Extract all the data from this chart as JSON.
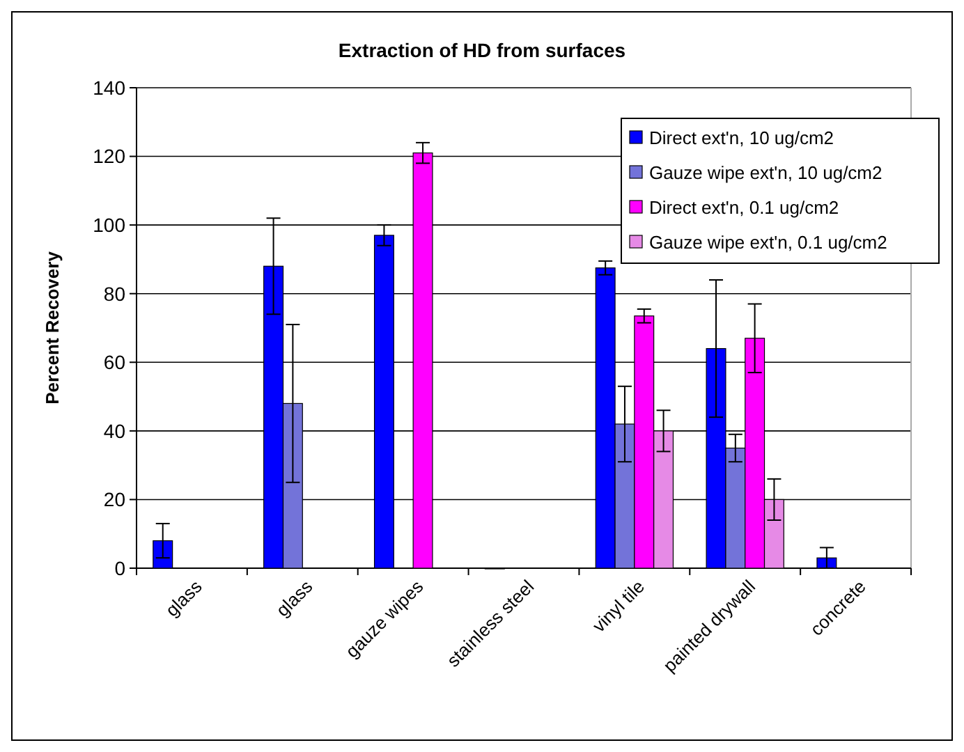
{
  "chart_data": {
    "type": "bar",
    "title": "Extraction of HD from surfaces",
    "ylabel": "Percent Recovery",
    "categories": [
      "glass",
      "glass",
      "gauze wipes",
      "stainless steel",
      "vinyl tile",
      "painted drywall",
      "concrete"
    ],
    "series": [
      {
        "name": "Direct ext'n, 10 ug/cm2",
        "color": "#0000ff",
        "values": [
          8,
          88,
          97,
          0,
          87.5,
          64,
          3
        ],
        "errors": [
          5,
          14,
          3,
          null,
          2,
          20,
          3
        ]
      },
      {
        "name": "Gauze wipe ext'n, 10 ug/cm2",
        "color": "#7373d9",
        "values": [
          null,
          48,
          null,
          null,
          42,
          35,
          null
        ],
        "errors": [
          null,
          23,
          null,
          null,
          11,
          4,
          null
        ]
      },
      {
        "name": "Direct ext'n, 0.1 ug/cm2",
        "color": "#ff00ff",
        "values": [
          null,
          null,
          121,
          null,
          73.5,
          67,
          null
        ],
        "errors": [
          null,
          null,
          3,
          null,
          2,
          10,
          null
        ]
      },
      {
        "name": "Gauze wipe ext'n, 0.1 ug/cm2",
        "color": "#e68ae6",
        "values": [
          null,
          null,
          null,
          null,
          40,
          20,
          null
        ],
        "errors": [
          null,
          null,
          null,
          null,
          6,
          6,
          null
        ]
      }
    ],
    "ylim": [
      0,
      140
    ],
    "yticks": [
      0,
      20,
      40,
      60,
      80,
      100,
      120,
      140
    ],
    "grid": "y",
    "legend": "top right"
  }
}
